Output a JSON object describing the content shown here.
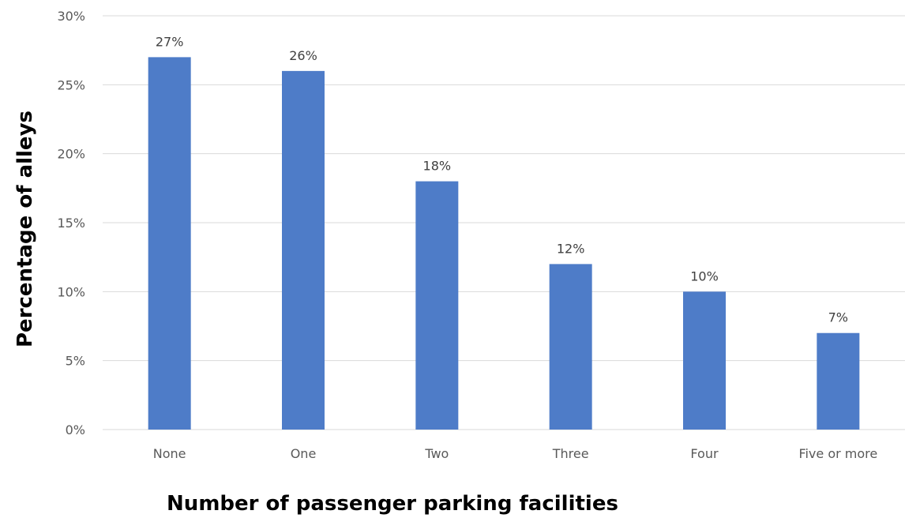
{
  "chart_data": {
    "type": "bar",
    "categories": [
      "None",
      "One",
      "Two",
      "Three",
      "Four",
      "Five or more"
    ],
    "values": [
      27,
      26,
      18,
      12,
      10,
      7
    ],
    "value_labels": [
      "27%",
      "26%",
      "18%",
      "12%",
      "10%",
      "7%"
    ],
    "y_tick_labels": [
      "0%",
      "5%",
      "10%",
      "15%",
      "20%",
      "25%",
      "30%"
    ],
    "y_ticks": [
      0,
      5,
      10,
      15,
      20,
      25,
      30
    ],
    "xlabel": "Number of passenger parking facilities",
    "ylabel": "Percentage of alleys",
    "ylim": [
      0,
      30
    ],
    "grid": true,
    "legend": "none",
    "colors": {
      "bar": "#4E7CC8",
      "grid": "#D9D9D9"
    }
  }
}
